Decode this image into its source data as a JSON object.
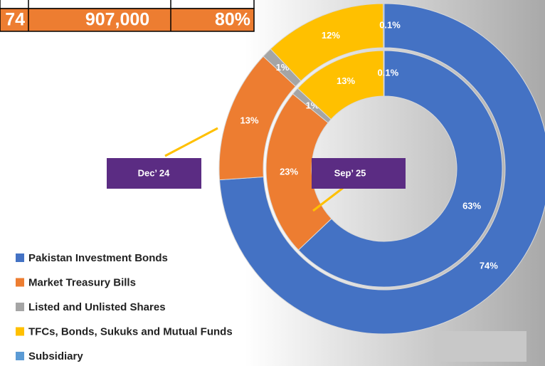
{
  "table": {
    "rows": [
      [
        "74",
        "907,000",
        "80%"
      ]
    ]
  },
  "chart_data": {
    "type": "donut",
    "categories": [
      "Pakistan Investment Bonds",
      "Market Treasury Bills",
      "Listed and Unlisted Shares",
      "TFCs, Bonds, Sukuks and Mutual Funds",
      "Subsidiary"
    ],
    "colors": [
      "#4472c4",
      "#ed7d31",
      "#a5a5a5",
      "#ffc000",
      "#5b9bd5"
    ],
    "series": [
      {
        "name": "Dec’ 24",
        "values": [
          74,
          13,
          1,
          12,
          0.1
        ],
        "value_labels": [
          "74%",
          "13%",
          "1%",
          "12%",
          "0.1%"
        ]
      },
      {
        "name": "Sep’ 25",
        "values": [
          63,
          23,
          1,
          13,
          0.1
        ],
        "value_labels": [
          "63%",
          "23%",
          "1%",
          "13%",
          "0.1%"
        ]
      }
    ]
  }
}
